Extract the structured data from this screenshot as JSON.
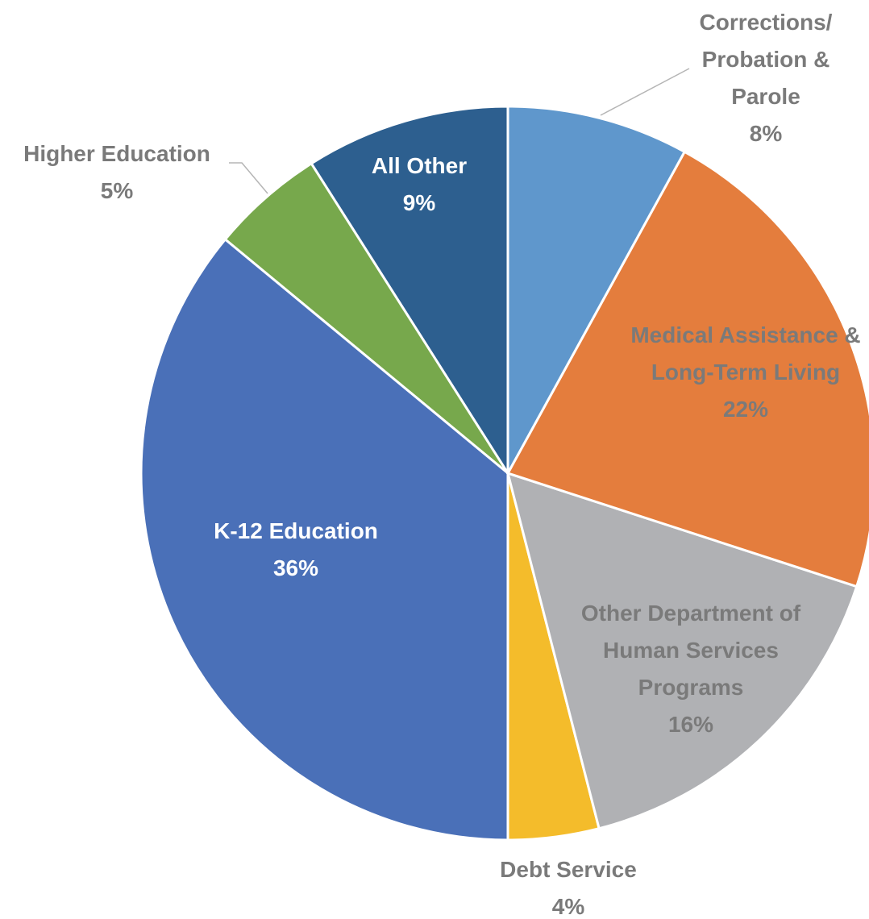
{
  "chart_data": {
    "type": "pie",
    "categories": [
      "Corrections/ Probation & Parole",
      "Medical Assistance & Long-Term Living",
      "Other Department of Human Services Programs",
      "Debt Service",
      "K-12 Education",
      "Higher Education",
      "All Other"
    ],
    "values": [
      8,
      22,
      16,
      4,
      36,
      5,
      9
    ],
    "value_labels": [
      "8%",
      "22%",
      "16%",
      "4%",
      "36%",
      "5%",
      "9%"
    ],
    "colors": [
      "#5f97cc",
      "#e47d3d",
      "#b0b1b4",
      "#f4bc2b",
      "#4a70b8",
      "#77a84c",
      "#2d5f8f"
    ]
  }
}
